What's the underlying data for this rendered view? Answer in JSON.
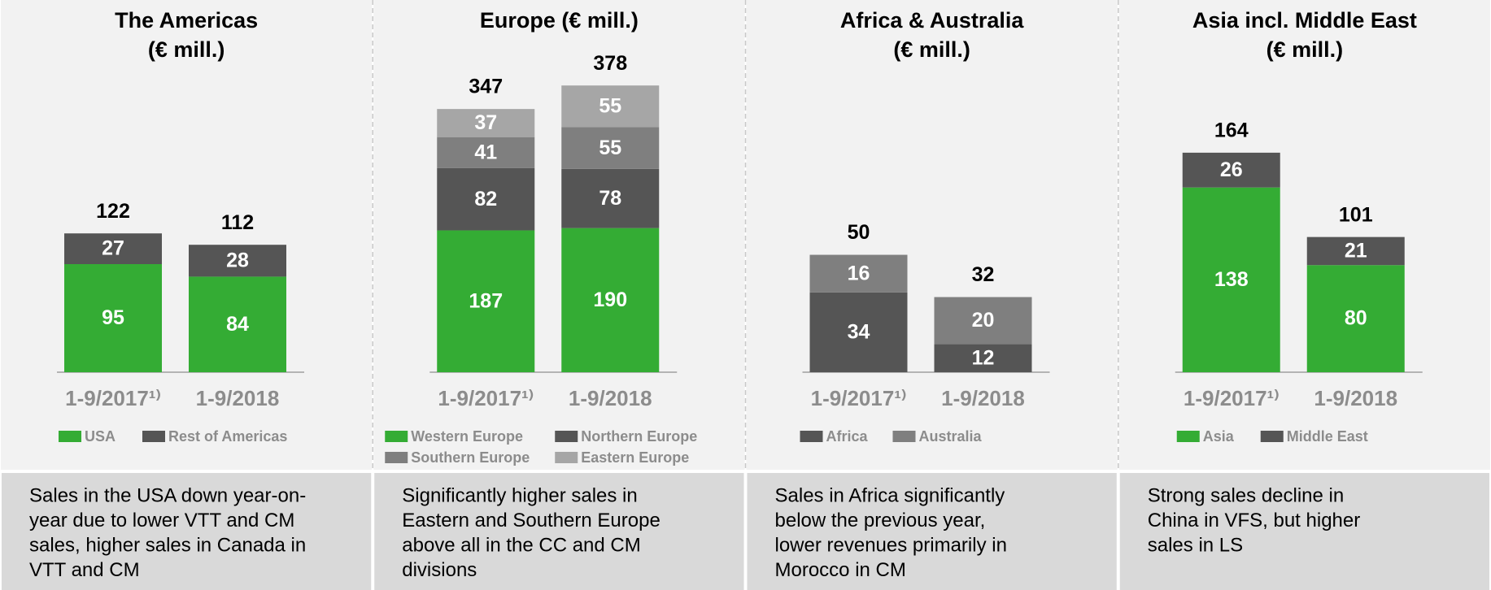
{
  "chart_data": [
    {
      "type": "stacked_bar",
      "title": [
        "The Americas",
        "(€ mill.)"
      ],
      "categories": [
        "1-9/2017¹⁾",
        "1-9/2018"
      ],
      "series": [
        {
          "name": "USA",
          "color": "#34ac34",
          "values": [
            95,
            84
          ]
        },
        {
          "name": "Rest of Americas",
          "color": "#555555",
          "values": [
            27,
            28
          ]
        }
      ],
      "totals": [
        122,
        112
      ],
      "ylim": [
        0,
        260
      ],
      "note": [
        "Sales in the USA down year-on-",
        "year due to lower VTT and CM",
        "sales, higher sales in Canada in",
        "VTT and CM"
      ]
    },
    {
      "type": "stacked_bar",
      "title": [
        "Europe (€ mill.)"
      ],
      "categories": [
        "1-9/2017¹⁾",
        "1-9/2018"
      ],
      "series": [
        {
          "name": "Western Europe",
          "color": "#34ac34",
          "values": [
            187,
            190
          ]
        },
        {
          "name": "Northern Europe",
          "color": "#555555",
          "values": [
            82,
            78
          ]
        },
        {
          "name": "Southern Europe",
          "color": "#7f7f7f",
          "values": [
            41,
            55
          ]
        },
        {
          "name": "Eastern Europe",
          "color": "#a6a6a6",
          "values": [
            37,
            55
          ]
        }
      ],
      "totals": [
        347,
        378
      ],
      "ylim": [
        0,
        390
      ],
      "note": [
        "Significantly higher sales in",
        "Eastern and Southern Europe",
        "above all in the CC and CM",
        "divisions"
      ]
    },
    {
      "type": "stacked_bar",
      "title": [
        "Africa & Australia",
        "(€ mill.)"
      ],
      "categories": [
        "1-9/2017¹⁾",
        "1-9/2018"
      ],
      "series": [
        {
          "name": "Africa",
          "color": "#555555",
          "values": [
            34,
            12
          ]
        },
        {
          "name": "Australia",
          "color": "#7f7f7f",
          "values": [
            16,
            20
          ]
        }
      ],
      "totals": [
        50,
        32
      ],
      "ylim": [
        0,
        126
      ],
      "note": [
        "Sales in Africa significantly",
        "below the previous year,",
        "lower revenues primarily in",
        "Morocco in CM"
      ]
    },
    {
      "type": "stacked_bar",
      "title": [
        "Asia incl. Middle East",
        "(€ mill.)"
      ],
      "categories": [
        "1-9/2017¹⁾",
        "1-9/2018"
      ],
      "series": [
        {
          "name": "Asia",
          "color": "#34ac34",
          "values": [
            138,
            80
          ]
        },
        {
          "name": "Middle East",
          "color": "#555555",
          "values": [
            26,
            21
          ]
        }
      ],
      "totals": [
        164,
        101
      ],
      "ylim": [
        0,
        221
      ],
      "note": [
        "Strong sales decline in",
        "China in VFS, but higher",
        "sales in LS"
      ]
    }
  ]
}
